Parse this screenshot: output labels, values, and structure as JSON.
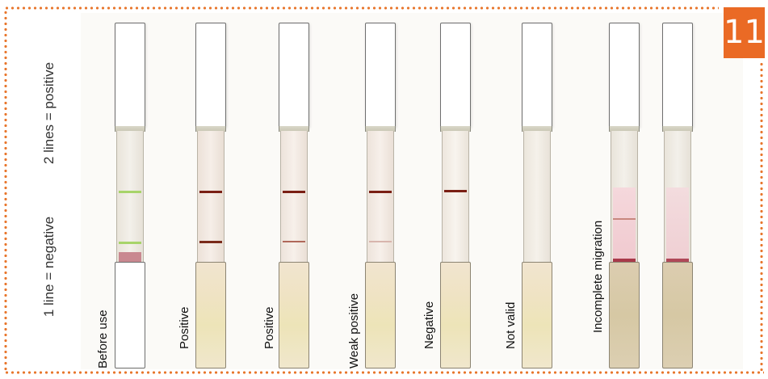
{
  "badge": {
    "number": "11",
    "color": "#ea6a25"
  },
  "side_labels": {
    "top": "2 lines = positive",
    "bottom": "1 line = negative"
  },
  "strips": [
    {
      "label": "Before use"
    },
    {
      "label": "Positive"
    },
    {
      "label": "Positive"
    },
    {
      "label": "Weak positive"
    },
    {
      "label": "Negative"
    },
    {
      "label": "Not valid"
    },
    {
      "label": "Incomplete migration"
    },
    {
      "label": ""
    }
  ],
  "colors": {
    "border_dots": "#e8772e",
    "control_line": "#7a1f14",
    "unused_indicator": "#9acd5a",
    "migration_wash": "#f2cfd3"
  }
}
